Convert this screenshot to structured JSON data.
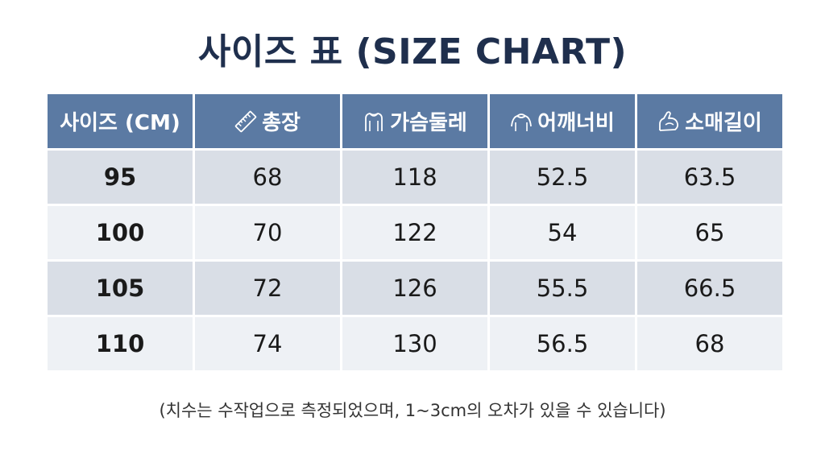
{
  "title": "사이즈 표 (SIZE CHART)",
  "table": {
    "headers": [
      {
        "label": "사이즈 (CM)",
        "icon": ""
      },
      {
        "label": "총장",
        "icon": "ruler-icon"
      },
      {
        "label": "가슴둘레",
        "icon": "shirt-chest-icon"
      },
      {
        "label": "어깨너비",
        "icon": "shoulder-icon"
      },
      {
        "label": "소매길이",
        "icon": "arm-icon"
      }
    ],
    "rows": [
      [
        "95",
        "68",
        "118",
        "52.5",
        "63.5"
      ],
      [
        "100",
        "70",
        "122",
        "54",
        "65"
      ],
      [
        "105",
        "72",
        "126",
        "55.5",
        "66.5"
      ],
      [
        "110",
        "74",
        "130",
        "56.5",
        "68"
      ]
    ]
  },
  "note": "(치수는 수작업으로 측정되었으며, 1~3cm의 오차가 있을 수 있습니다)",
  "colors": {
    "title": "#1f2f4d",
    "header_bg": "#5b7aa3",
    "row_dark": "#d9dee6",
    "row_light": "#eef1f5"
  }
}
